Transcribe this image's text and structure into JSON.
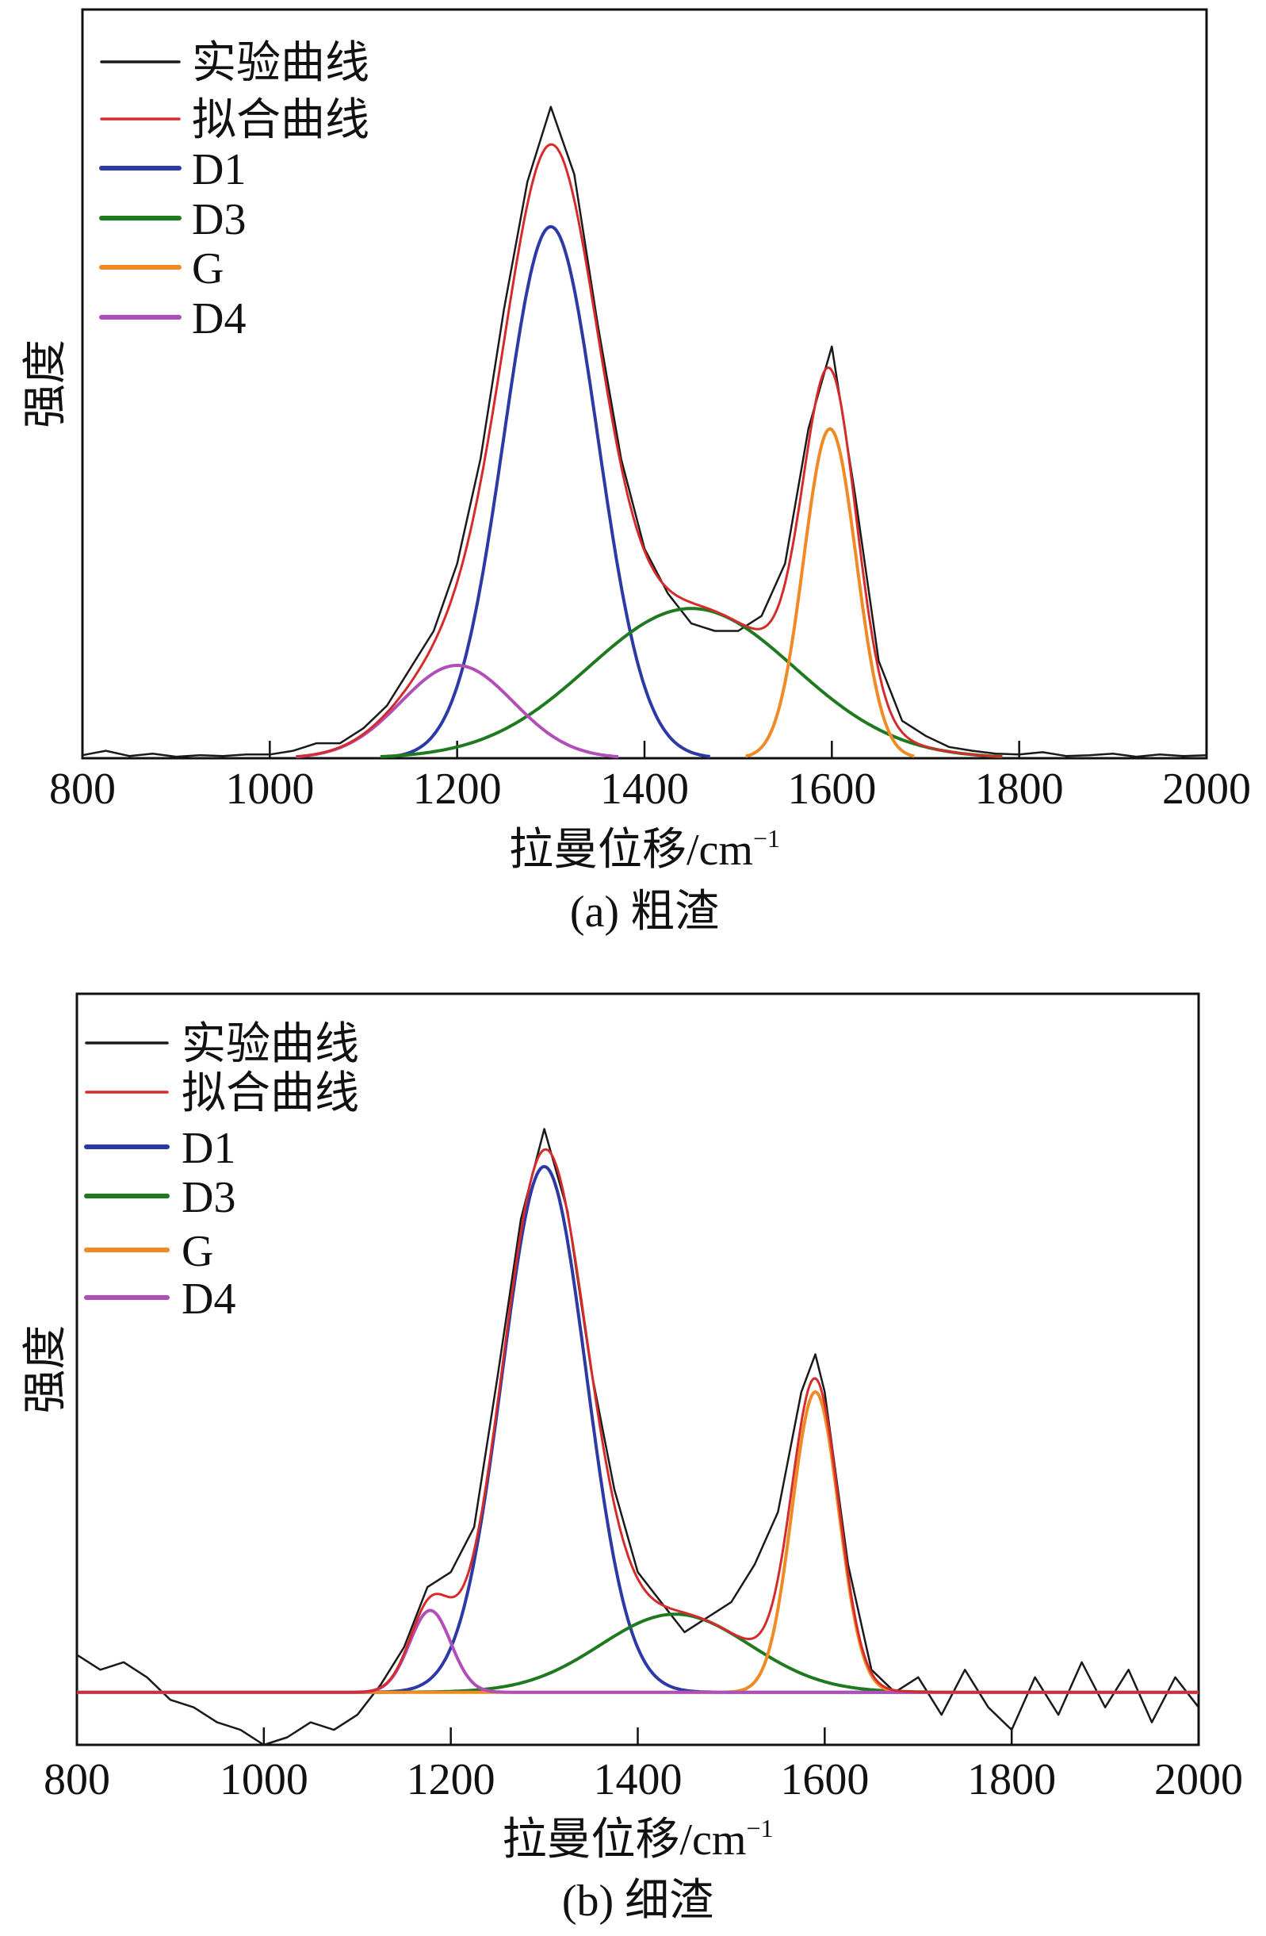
{
  "chart_data": [
    {
      "type": "line",
      "caption": "(a) 粗渣",
      "xlabel": "拉曼位移/cm",
      "xlabel_sup": "−1",
      "ylabel": "强度",
      "xlim": [
        800,
        2000
      ],
      "ylim": [
        0,
        1
      ],
      "xticks": [
        800,
        1000,
        1200,
        1400,
        1600,
        1800,
        2000
      ],
      "yticks_shown": false,
      "grid": false,
      "legend_placement": "top-left",
      "clip_components_to_visible": true,
      "experimental": {
        "name": "实验曲线",
        "color": "#1a1a1a",
        "x": [
          800,
          825,
          850,
          875,
          900,
          925,
          950,
          975,
          1000,
          1025,
          1050,
          1075,
          1100,
          1125,
          1150,
          1175,
          1200,
          1225,
          1250,
          1275,
          1300,
          1325,
          1350,
          1375,
          1400,
          1425,
          1450,
          1475,
          1500,
          1525,
          1550,
          1575,
          1600,
          1625,
          1650,
          1675,
          1700,
          1725,
          1750,
          1775,
          1800,
          1825,
          1850,
          1875,
          1900,
          1925,
          1950,
          1975,
          2000
        ],
        "y": [
          0.004,
          0.01,
          0.003,
          0.006,
          0.002,
          0.004,
          0.003,
          0.005,
          0.005,
          0.01,
          0.02,
          0.02,
          0.04,
          0.07,
          0.12,
          0.17,
          0.26,
          0.4,
          0.6,
          0.77,
          0.87,
          0.78,
          0.58,
          0.4,
          0.28,
          0.22,
          0.18,
          0.17,
          0.17,
          0.19,
          0.26,
          0.44,
          0.55,
          0.35,
          0.13,
          0.05,
          0.03,
          0.015,
          0.01,
          0.006,
          0.005,
          0.008,
          0.003,
          0.004,
          0.006,
          0.002,
          0.005,
          0.003,
          0.004
        ]
      },
      "fit": {
        "name": "拟合曲线",
        "color": "#d62b2b"
      },
      "components": [
        {
          "name": "D1",
          "color": "#2c3aa6",
          "center": 1300,
          "amplitude": 0.71,
          "sigma": 50
        },
        {
          "name": "D3",
          "color": "#1f7a1f",
          "center": 1450,
          "amplitude": 0.2,
          "sigma": 110
        },
        {
          "name": "G",
          "color": "#ef8a24",
          "center": 1598,
          "amplitude": 0.44,
          "sigma": 28
        },
        {
          "name": "D4",
          "color": "#b04fb8",
          "center": 1200,
          "amplitude": 0.124,
          "sigma": 60
        }
      ]
    },
    {
      "type": "line",
      "caption": "(b) 细渣",
      "xlabel": "拉曼位移/cm",
      "xlabel_sup": "−1",
      "ylabel": "强度",
      "xlim": [
        800,
        2000
      ],
      "ylim": [
        -0.07,
        0.93
      ],
      "xticks": [
        800,
        1000,
        1200,
        1400,
        1600,
        1800,
        2000
      ],
      "yticks_shown": false,
      "grid": false,
      "legend_placement": "top-left",
      "clip_components_to_visible": false,
      "experimental": {
        "name": "实验曲线",
        "color": "#1a1a1a",
        "x": [
          800,
          825,
          850,
          875,
          900,
          925,
          950,
          975,
          1000,
          1025,
          1050,
          1075,
          1100,
          1125,
          1150,
          1175,
          1200,
          1225,
          1250,
          1275,
          1300,
          1325,
          1350,
          1375,
          1400,
          1425,
          1450,
          1475,
          1500,
          1525,
          1550,
          1575,
          1590,
          1600,
          1625,
          1650,
          1675,
          1700,
          1725,
          1750,
          1775,
          1800,
          1825,
          1850,
          1875,
          1900,
          1925,
          1950,
          1975,
          2000
        ],
        "y": [
          0.05,
          0.03,
          0.04,
          0.02,
          -0.01,
          -0.02,
          -0.04,
          -0.05,
          -0.07,
          -0.06,
          -0.04,
          -0.05,
          -0.03,
          0.01,
          0.06,
          0.14,
          0.16,
          0.22,
          0.42,
          0.63,
          0.75,
          0.64,
          0.43,
          0.27,
          0.16,
          0.12,
          0.08,
          0.1,
          0.12,
          0.17,
          0.24,
          0.4,
          0.45,
          0.4,
          0.17,
          0.03,
          0.0,
          0.02,
          -0.03,
          0.03,
          -0.02,
          -0.05,
          0.02,
          -0.03,
          0.04,
          -0.02,
          0.03,
          -0.04,
          0.02,
          -0.02
        ]
      },
      "fit": {
        "name": "拟合曲线",
        "color": "#d62b2b"
      },
      "components": [
        {
          "name": "D1",
          "color": "#2c3aa6",
          "center": 1300,
          "amplitude": 0.7,
          "sigma": 45
        },
        {
          "name": "D3",
          "color": "#1f7a1f",
          "center": 1440,
          "amplitude": 0.104,
          "sigma": 80
        },
        {
          "name": "G",
          "color": "#ef8a24",
          "center": 1590,
          "amplitude": 0.4,
          "sigma": 25
        },
        {
          "name": "D4",
          "color": "#b04fb8",
          "center": 1178,
          "amplitude": 0.109,
          "sigma": 22
        }
      ]
    }
  ]
}
